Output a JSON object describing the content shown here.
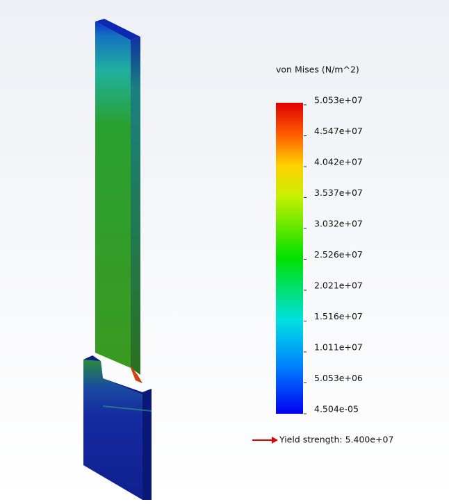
{
  "legend": {
    "title": "von Mises (N/m^2)",
    "labels": [
      "5.053e+07",
      "4.547e+07",
      "4.042e+07",
      "3.537e+07",
      "3.032e+07",
      "2.526e+07",
      "2.021e+07",
      "1.516e+07",
      "1.011e+07",
      "5.053e+06",
      "4.504e-05"
    ],
    "yield_strength": "Yield strength: 5.400e+07"
  }
}
